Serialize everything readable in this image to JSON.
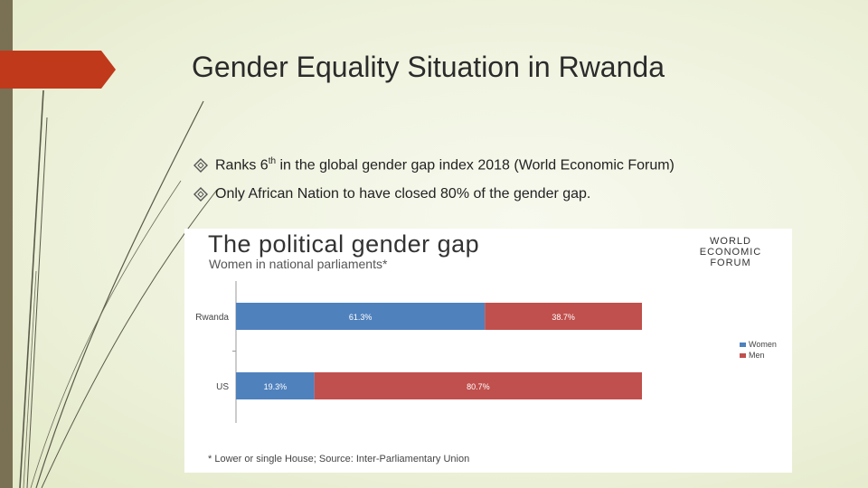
{
  "slide": {
    "title": "Gender Equality Situation in Rwanda",
    "bullets": [
      {
        "pre": "Ranks 6",
        "sup": "th",
        "post": " in the global gender gap index 2018 (World Economic Forum)"
      },
      {
        "pre": "Only African Nation to have closed 80% of the gender gap.",
        "sup": "",
        "post": ""
      }
    ],
    "colors": {
      "accent": "#c0391b",
      "side_bar": "#7a7054"
    }
  },
  "chart_header": {
    "title": "The political gender gap",
    "subtitle": "Women in national parliaments*",
    "logo_lines": [
      "WORLD",
      "ECONOMIC",
      "FORUM"
    ],
    "footnote": "* Lower or single House; Source: Inter-Parliamentary Union"
  },
  "chart_data": {
    "type": "bar",
    "orientation": "horizontal",
    "stacked": true,
    "title": "The political gender gap",
    "subtitle": "Women in national parliaments*",
    "categories": [
      "Rwanda",
      "US"
    ],
    "series": [
      {
        "name": "Women",
        "values": [
          61.3,
          19.3
        ],
        "labels": [
          "61.3%",
          "19.3%"
        ],
        "color": "#4f81bd"
      },
      {
        "name": "Men",
        "values": [
          38.7,
          80.7
        ],
        "labels": [
          "38.7%",
          "80.7%"
        ],
        "color": "#c0504d"
      }
    ],
    "xlim": [
      0,
      100
    ],
    "legend": "right",
    "grid": false
  }
}
